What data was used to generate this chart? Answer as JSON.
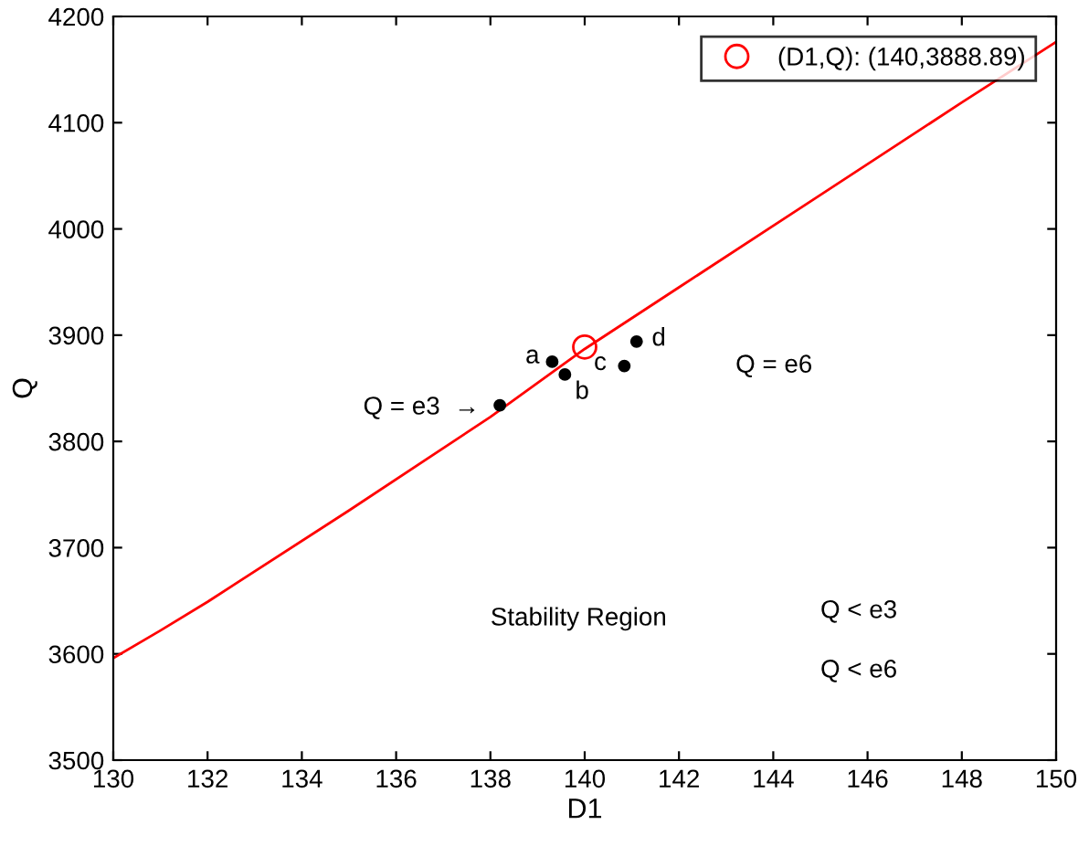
{
  "chart_data": {
    "type": "scatter",
    "xlabel": "D1",
    "ylabel": "Q",
    "xlim": [
      130,
      150
    ],
    "xticks": [
      130,
      132,
      134,
      136,
      138,
      140,
      142,
      144,
      146,
      148,
      150
    ],
    "ylim": [
      3500,
      4200
    ],
    "yticks": [
      3500,
      3600,
      3700,
      3800,
      3900,
      4000,
      4100,
      4200
    ],
    "grid": false,
    "legend": "top right",
    "series": [
      {
        "type": "line",
        "color": "#ff0000",
        "marker": "none",
        "x": [
          130,
          131,
          132,
          135,
          138,
          140,
          142,
          145,
          148,
          150
        ],
        "values": [
          3596,
          3622,
          3649,
          3735,
          3823,
          3887,
          3945,
          4032,
          4119,
          4176
        ]
      },
      {
        "color": "#000000",
        "marker": "circle",
        "x": [
          138.2,
          139.31,
          139.58,
          140.84,
          141.1
        ],
        "values": [
          3834,
          3875,
          3863,
          3871,
          3894
        ]
      },
      {
        "name": "(D1,Q): (140,3888.89)",
        "color": "#ff0000",
        "marker": "circle",
        "x": [
          140
        ],
        "values": [
          3888.89
        ]
      }
    ],
    "annotations": [
      {
        "text": "Q = e3  →",
        "x": 138.2,
        "y": 3834
      },
      {
        "text": "a",
        "x": 139.31,
        "y": 3875
      },
      {
        "text": "b",
        "x": 139.58,
        "y": 3863
      },
      {
        "text": "c",
        "x": 140.84,
        "y": 3871
      },
      {
        "text": "d",
        "x": 141.1,
        "y": 3894
      },
      "Q = e6",
      "Stability Region",
      "Q < e3",
      "Q < e6"
    ]
  }
}
